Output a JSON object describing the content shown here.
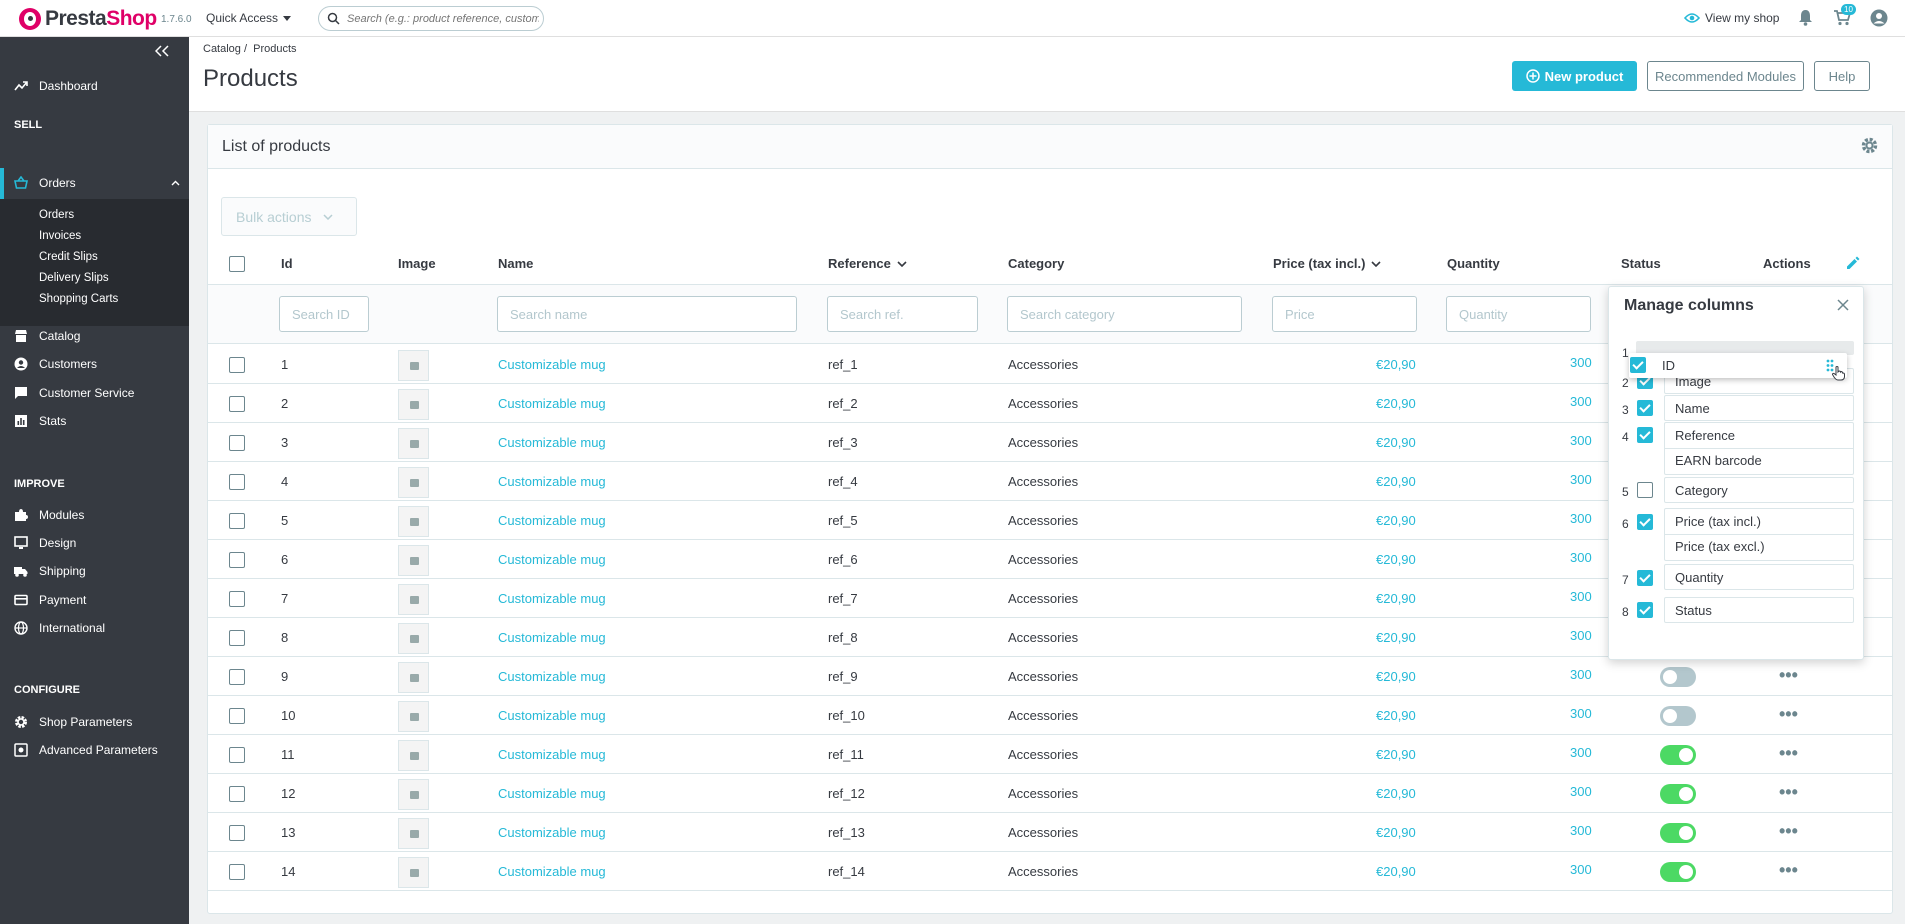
{
  "topbar": {
    "logo_text_presta": "Presta",
    "logo_text_shop": "Shop",
    "version": "1.7.6.0",
    "quick_access": "Quick Access",
    "search_placeholder": "Search (e.g.: product reference, customer name...)",
    "view_shop": "View my shop",
    "cart_badge": "10",
    "icons": [
      "search-icon",
      "eye-icon",
      "bell-icon",
      "cart-icon",
      "user-icon"
    ]
  },
  "sidebar": {
    "dashboard": "Dashboard",
    "sell": "SELL",
    "orders": "Orders",
    "orders_sub": [
      "Orders",
      "Invoices",
      "Credit Slips",
      "Delivery Slips",
      "Shopping Carts"
    ],
    "catalog": "Catalog",
    "customers": "Customers",
    "customer_service": "Customer Service",
    "stats": "Stats",
    "improve": "IMPROVE",
    "modules": "Modules",
    "design": "Design",
    "shipping": "Shipping",
    "payment": "Payment",
    "international": "International",
    "configure": "CONFIGURE",
    "shop_parameters": "Shop Parameters",
    "advanced_parameters": "Advanced Parameters"
  },
  "header": {
    "breadcrumb_1": "Catalog",
    "breadcrumb_sep": "/",
    "breadcrumb_2": "Products",
    "title": "Products",
    "new_product": "New product",
    "recommended_modules": "Recommended Modules",
    "help": "Help"
  },
  "card": {
    "title": "List of products",
    "bulk_actions": "Bulk actions"
  },
  "table": {
    "headers": {
      "id": "Id",
      "image": "Image",
      "name": "Name",
      "reference": "Reference",
      "category": "Category",
      "price": "Price (tax incl.)",
      "quantity": "Quantity",
      "status": "Status",
      "actions": "Actions"
    },
    "placeholders": {
      "id": "Search ID",
      "name": "Search name",
      "reference": "Search ref.",
      "category": "Search category",
      "price": "Price",
      "quantity": "Quantity"
    },
    "rows": [
      {
        "id": "1",
        "name": "Customizable mug",
        "ref": "ref_1",
        "category": "Accessories",
        "price": "€20,90",
        "qty": "300",
        "status": null
      },
      {
        "id": "2",
        "name": "Customizable mug",
        "ref": "ref_2",
        "category": "Accessories",
        "price": "€20,90",
        "qty": "300",
        "status": null
      },
      {
        "id": "3",
        "name": "Customizable mug",
        "ref": "ref_3",
        "category": "Accessories",
        "price": "€20,90",
        "qty": "300",
        "status": null
      },
      {
        "id": "4",
        "name": "Customizable mug",
        "ref": "ref_4",
        "category": "Accessories",
        "price": "€20,90",
        "qty": "300",
        "status": null
      },
      {
        "id": "5",
        "name": "Customizable mug",
        "ref": "ref_5",
        "category": "Accessories",
        "price": "€20,90",
        "qty": "300",
        "status": null
      },
      {
        "id": "6",
        "name": "Customizable mug",
        "ref": "ref_6",
        "category": "Accessories",
        "price": "€20,90",
        "qty": "300",
        "status": null
      },
      {
        "id": "7",
        "name": "Customizable mug",
        "ref": "ref_7",
        "category": "Accessories",
        "price": "€20,90",
        "qty": "300",
        "status": null
      },
      {
        "id": "8",
        "name": "Customizable mug",
        "ref": "ref_8",
        "category": "Accessories",
        "price": "€20,90",
        "qty": "300",
        "status": null
      },
      {
        "id": "9",
        "name": "Customizable mug",
        "ref": "ref_9",
        "category": "Accessories",
        "price": "€20,90",
        "qty": "300",
        "status": "off"
      },
      {
        "id": "10",
        "name": "Customizable mug",
        "ref": "ref_10",
        "category": "Accessories",
        "price": "€20,90",
        "qty": "300",
        "status": "off"
      },
      {
        "id": "11",
        "name": "Customizable mug",
        "ref": "ref_11",
        "category": "Accessories",
        "price": "€20,90",
        "qty": "300",
        "status": "on"
      },
      {
        "id": "12",
        "name": "Customizable mug",
        "ref": "ref_12",
        "category": "Accessories",
        "price": "€20,90",
        "qty": "300",
        "status": "on"
      },
      {
        "id": "13",
        "name": "Customizable mug",
        "ref": "ref_13",
        "category": "Accessories",
        "price": "€20,90",
        "qty": "300",
        "status": "on"
      },
      {
        "id": "14",
        "name": "Customizable mug",
        "ref": "ref_14",
        "category": "Accessories",
        "price": "€20,90",
        "qty": "300",
        "status": "on"
      }
    ]
  },
  "manage_columns": {
    "title": "Manage columns",
    "dragging": {
      "label": "ID",
      "checked": true
    },
    "items": [
      {
        "num": "1",
        "label": null,
        "checked": null
      },
      {
        "num": "2",
        "label": "Image",
        "checked": true
      },
      {
        "num": "3",
        "label": "Name",
        "checked": true
      },
      {
        "num": "4",
        "label": "Reference",
        "checked": true
      },
      {
        "num": "",
        "label": "EARN barcode",
        "checked": null
      },
      {
        "num": "5",
        "label": "Category",
        "checked": false
      },
      {
        "num": "6",
        "label": "Price (tax incl.)",
        "checked": true
      },
      {
        "num": "",
        "label": "Price (tax excl.)",
        "checked": null
      },
      {
        "num": "7",
        "label": "Quantity",
        "checked": true
      },
      {
        "num": "8",
        "label": "Status",
        "checked": true
      }
    ]
  },
  "colors": {
    "accent": "#25b9d7",
    "sidebar": "#363a41",
    "toggle_on": "#4cd964",
    "toggle_off": "#b3c7cd"
  }
}
